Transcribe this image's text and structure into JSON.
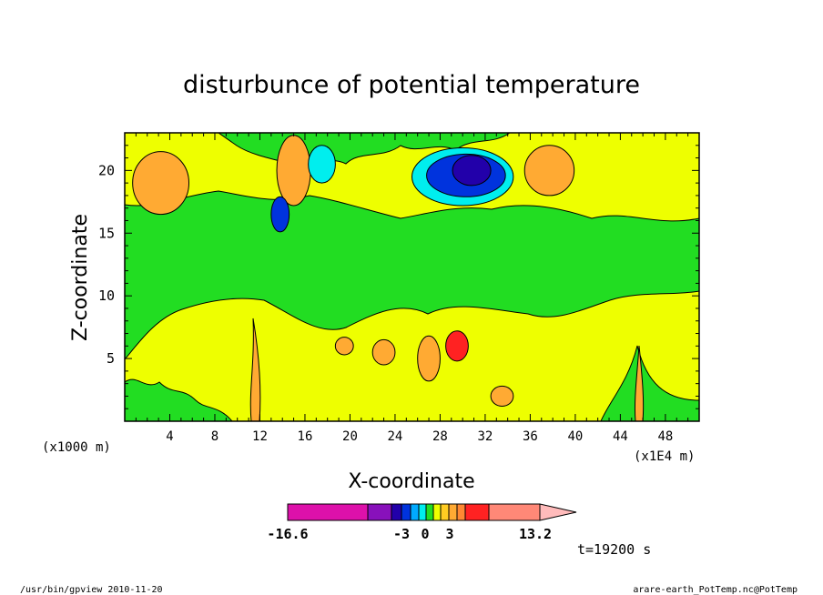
{
  "chart_data": {
    "type": "heatmap",
    "title": "disturbunce of potential temperature",
    "xlabel": "X-coordinate",
    "ylabel": "Z-coordinate",
    "x_unit": "(x1000 m)",
    "x_unit_right": "(x1E4 m)",
    "xlim": [
      0,
      51
    ],
    "ylim": [
      0,
      23
    ],
    "x_ticks": [
      4,
      8,
      12,
      16,
      20,
      24,
      28,
      32,
      36,
      40,
      44,
      48
    ],
    "y_ticks": [
      5,
      10,
      15,
      20
    ],
    "colorbar": {
      "labels": [
        "-16.6",
        "-3",
        "0",
        "3",
        "13.2"
      ],
      "colors": [
        "#dd11aa",
        "#8811bb",
        "#2200aa",
        "#0033dd",
        "#00aaff",
        "#00eeee",
        "#22dd22",
        "#eeff00",
        "#ffcc22",
        "#ffaa33",
        "#ff8833",
        "#ff2222",
        "#ff8877",
        "#ffbbbb"
      ]
    },
    "blobs": [
      {
        "cx": 3.2,
        "cz": 19,
        "rx": 2.5,
        "rz": 2.5,
        "level": "orange"
      },
      {
        "cx": 15,
        "cz": 20,
        "rx": 1.5,
        "rz": 2.8,
        "level": "orange"
      },
      {
        "cx": 13.8,
        "cz": 16.5,
        "rx": 0.8,
        "rz": 1.4,
        "level": "blue"
      },
      {
        "cx": 30,
        "cz": 19.5,
        "rx": 4.5,
        "rz": 2.3,
        "level": "cyan"
      },
      {
        "cx": 30.3,
        "cz": 19.6,
        "rx": 3.5,
        "rz": 1.7,
        "level": "blue"
      },
      {
        "cx": 30.8,
        "cz": 20,
        "rx": 1.7,
        "rz": 1.2,
        "level": "darkblue"
      },
      {
        "cx": 37.7,
        "cz": 20,
        "rx": 2.2,
        "rz": 2,
        "level": "orange"
      },
      {
        "cx": 17.5,
        "cz": 20.5,
        "rx": 1.2,
        "rz": 1.5,
        "level": "cyan"
      },
      {
        "cx": 19.5,
        "cz": 6,
        "rx": 0.8,
        "rz": 0.7,
        "level": "orange"
      },
      {
        "cx": 27,
        "cz": 5,
        "rx": 1,
        "rz": 1.8,
        "level": "orange"
      },
      {
        "cx": 29.5,
        "cz": 6,
        "rx": 1,
        "rz": 1.2,
        "level": "red"
      },
      {
        "cx": 33.5,
        "cz": 2,
        "rx": 1,
        "rz": 0.8,
        "level": "orange"
      },
      {
        "cx": 23,
        "cz": 5.5,
        "rx": 1,
        "rz": 1,
        "level": "orange"
      }
    ]
  },
  "footer": {
    "time": "t=19200 s",
    "left": "/usr/bin/gpview  2010-11-20",
    "right": "arare-earth_PotTemp.nc@PotTemp"
  }
}
